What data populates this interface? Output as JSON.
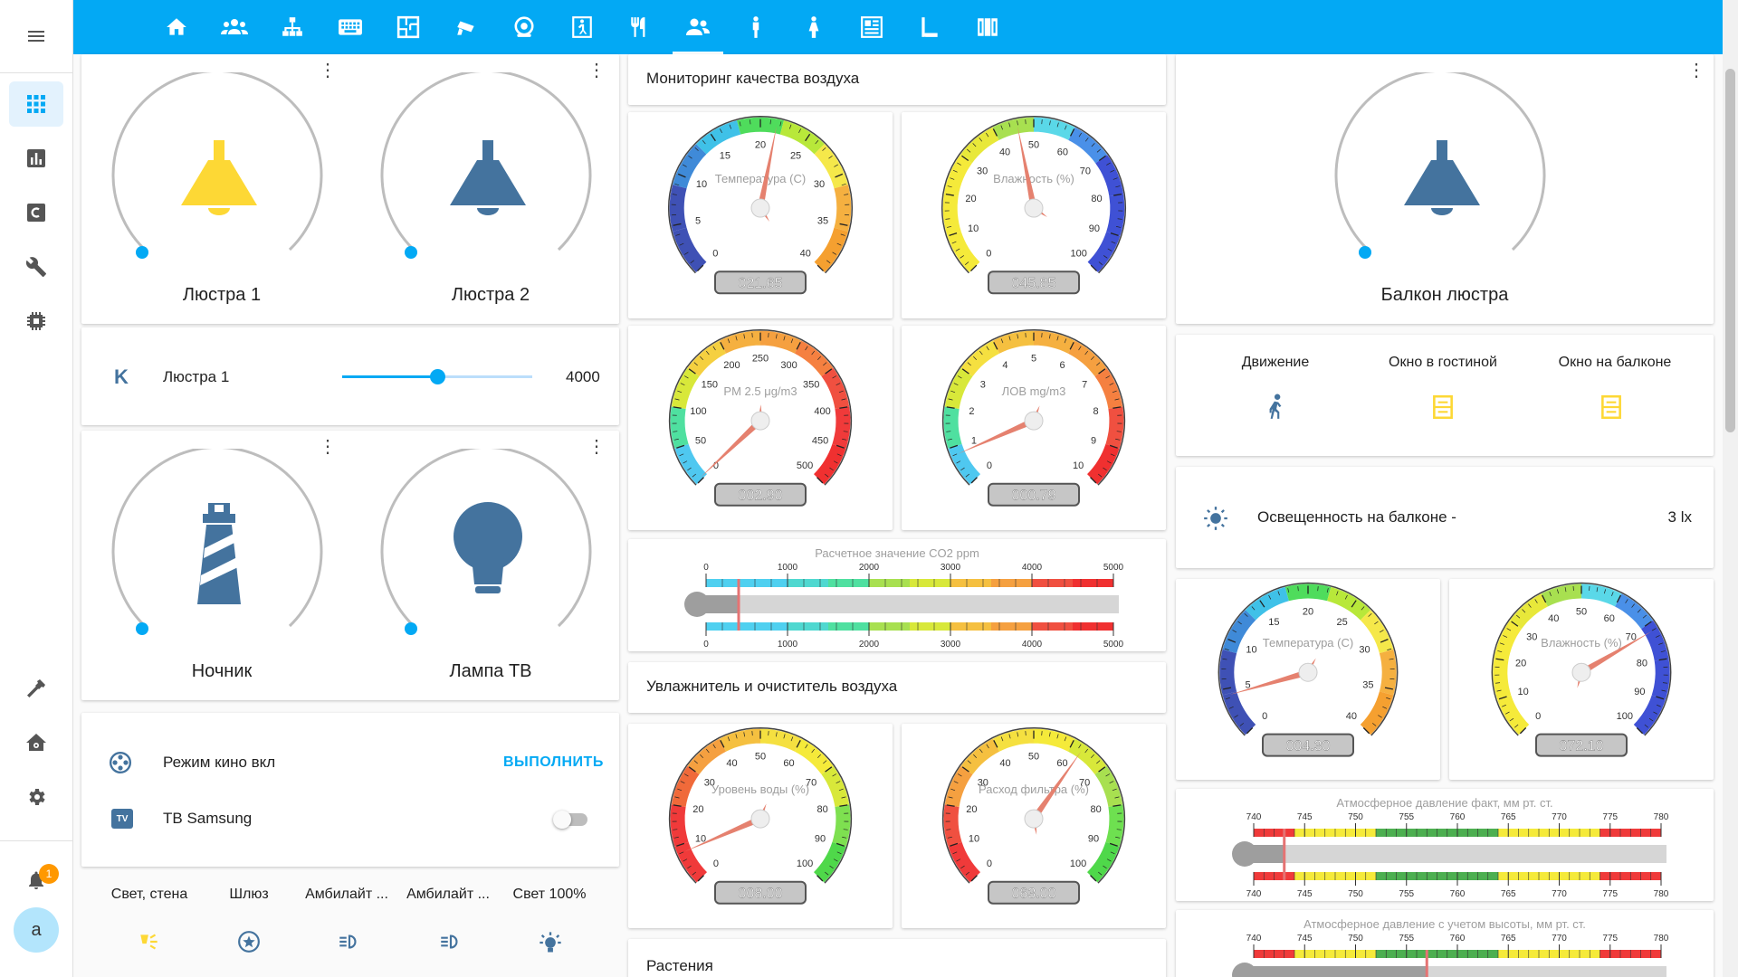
{
  "nav_tabs": [
    "home-icon",
    "users-icon",
    "network-icon",
    "keyboard-icon",
    "floorplan-icon",
    "cctv-icon",
    "robot-vacuum-icon",
    "exit-icon",
    "kitchen-icon",
    "people-icon",
    "man-icon",
    "woman-icon",
    "panel-icon",
    "book-icon",
    "blinds-icon"
  ],
  "sidebar": [
    "dashboard-icon",
    "chart-icon",
    "console-icon",
    "wrench-icon",
    "memory-icon",
    "hammer-icon",
    "home-settings-icon",
    "settings-icon"
  ],
  "notifications": {
    "count": "1"
  },
  "user": {
    "initial": "a"
  },
  "lights": {
    "l1": "Люстра 1",
    "l2": "Люстра 2",
    "l3": "Ночник",
    "l4": "Лампа ТВ",
    "balcony": "Балкон люстра"
  },
  "slider": {
    "icon_letter": "K",
    "label": "Люстра 1",
    "value": "4000",
    "level_fraction": 0.5
  },
  "scene": {
    "label": "Режим кино вкл",
    "action": "ВЫПОЛНИТЬ"
  },
  "tv": {
    "icon_text": "TV",
    "label": "ТВ Samsung",
    "on": false
  },
  "buttons": [
    "Свет, стена",
    "Шлюз",
    "Амбилайт ...",
    "Амбилайт ...",
    "Свет 100%"
  ],
  "air_quality": {
    "title": "Мониторинг качества воздуха",
    "temp": {
      "label": "Температура (C)",
      "value": "021.65",
      "ticks": [
        "0",
        "5",
        "10",
        "15",
        "20",
        "25",
        "30",
        "35",
        "40"
      ]
    },
    "hum": {
      "label": "Влажность (%)",
      "value": "045.85",
      "ticks": [
        "0",
        "10",
        "20",
        "30",
        "40",
        "50",
        "60",
        "70",
        "80",
        "90",
        "100"
      ]
    },
    "pm": {
      "label": "PM 2.5 μg/m3",
      "value": "002.90",
      "ticks": [
        "0",
        "50",
        "100",
        "150",
        "200",
        "250",
        "300",
        "350",
        "400",
        "450",
        "500"
      ]
    },
    "voc": {
      "label": "ЛОВ mg/m3",
      "value": "000.79",
      "ticks": [
        "0",
        "1",
        "2",
        "3",
        "4",
        "5",
        "6",
        "7",
        "8",
        "9",
        "10"
      ]
    },
    "co2": {
      "title": "Расчетное значение CO2 ppm",
      "ticks": [
        "0",
        "1000",
        "2000",
        "3000",
        "4000",
        "5000"
      ],
      "value": 400
    }
  },
  "humidifier": {
    "title": "Увлажнитель и очиститель воздуха",
    "water": {
      "label": "Уровень воды (%)",
      "value": "008.00",
      "ticks": [
        "0",
        "10",
        "20",
        "30",
        "40",
        "50",
        "60",
        "70",
        "80",
        "90",
        "100"
      ]
    },
    "filter": {
      "label": "Расход фильтра (%)",
      "value": "063.00",
      "ticks": [
        "0",
        "10",
        "20",
        "30",
        "40",
        "50",
        "60",
        "70",
        "80",
        "90",
        "100"
      ]
    }
  },
  "plants": {
    "title": "Растения"
  },
  "sensors": {
    "motion": "Движение",
    "window_living": "Окно в гостиной",
    "window_balcony": "Окно на балконе"
  },
  "illuminance": {
    "label": "Освещенность на балконе -",
    "value": "3 lx"
  },
  "balcony": {
    "temp": {
      "label": "Температура (C)",
      "value": "004.30"
    },
    "hum": {
      "label": "Влажность (%)",
      "value": "072.10"
    },
    "pressure": {
      "title": "Атмосферное давление факт, мм рт. ст.",
      "ticks": [
        "740",
        "745",
        "750",
        "755",
        "760",
        "765",
        "770",
        "775",
        "780"
      ],
      "value": 743
    },
    "pressure_alt": {
      "title": "Атмосферное давление с учетом высоты, мм рт. ст.",
      "ticks": [
        "740",
        "745",
        "750",
        "755",
        "760",
        "765",
        "770",
        "775",
        "780"
      ],
      "value": 757
    }
  },
  "colors": {
    "accent": "#03a9f4",
    "icon_blue": "#44739e",
    "bulb_on": "#fdd835"
  }
}
